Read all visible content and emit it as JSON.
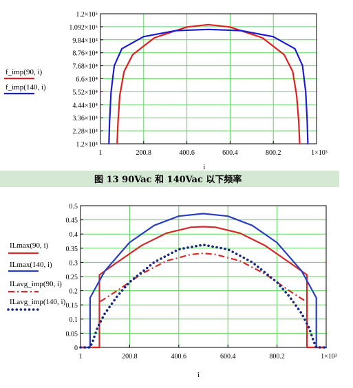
{
  "caption": "图 13 90Vac 和 140Vac 以下频率",
  "chart_data": [
    {
      "type": "line",
      "xlabel": "i",
      "x_ticks": [
        "1",
        "200.8",
        "400.6",
        "600.4",
        "800.2",
        "1×10³"
      ],
      "y_ticks": [
        "1.2×10⁴",
        "2.28×10⁴",
        "3.36×10⁴",
        "4.44×10⁴",
        "5.52×10⁴",
        "6.6×10⁴",
        "7.68×10⁴",
        "8.76×10⁴",
        "9.84×10⁴",
        "1.092×10⁵",
        "1.2×10⁵"
      ],
      "xlim": [
        1,
        1000
      ],
      "ylim": [
        12000,
        120000
      ],
      "grid": true,
      "legend_placement": "left",
      "series": [
        {
          "name": "f_imp(90, i)",
          "color": "#e02020",
          "x": [
            78,
            82,
            90,
            110,
            150,
            250,
            400,
            500,
            600,
            750,
            850,
            890,
            908,
            918,
            922
          ],
          "y": [
            12000,
            30000,
            52000,
            72000,
            86000,
            100000,
            109000,
            111000,
            109000,
            100000,
            86000,
            72000,
            52000,
            30000,
            12000
          ]
        },
        {
          "name": "f_imp(140, i)",
          "color": "#1c1cd0",
          "x": [
            40,
            43,
            50,
            65,
            100,
            200,
            350,
            500,
            650,
            800,
            900,
            935,
            950,
            957,
            960
          ],
          "y": [
            12000,
            30000,
            55000,
            77000,
            91000,
            101000,
            106000,
            107000,
            106000,
            101000,
            91000,
            77000,
            55000,
            30000,
            12000
          ]
        }
      ]
    },
    {
      "type": "line",
      "xlabel": "i",
      "x_ticks": [
        "1",
        "200.8",
        "400.6",
        "600.4",
        "800.2",
        "1×10³"
      ],
      "y_ticks": [
        "0",
        "0.05",
        "0.1",
        "0.15",
        "0.2",
        "0.25",
        "0.3",
        "0.35",
        "0.4",
        "0.45",
        "0.5"
      ],
      "xlim": [
        1,
        1000
      ],
      "ylim": [
        0,
        0.5
      ],
      "grid": true,
      "legend_placement": "left",
      "series": [
        {
          "name": "ILmax(90, i)",
          "style": "solid",
          "color": "#d42a2a",
          "x": [
            1,
            78,
            78,
            150,
            250,
            350,
            450,
            500,
            550,
            650,
            750,
            850,
            922,
            922,
            1000
          ],
          "y": [
            0,
            0,
            0.256,
            0.3,
            0.36,
            0.403,
            0.424,
            0.426,
            0.424,
            0.403,
            0.36,
            0.3,
            0.256,
            0,
            0
          ]
        },
        {
          "name": "ILmax(140, i)",
          "style": "solid",
          "color": "#2a3fc0",
          "x": [
            1,
            40,
            40,
            100,
            200,
            300,
            400,
            500,
            600,
            700,
            800,
            900,
            960,
            960,
            1000
          ],
          "y": [
            0,
            0,
            0.175,
            0.27,
            0.37,
            0.43,
            0.463,
            0.472,
            0.463,
            0.43,
            0.37,
            0.27,
            0.175,
            0,
            0
          ]
        },
        {
          "name": "ILavg_imp(90, i)",
          "style": "dash-dot",
          "color": "#d42a2a",
          "x": [
            1,
            78,
            78,
            150,
            250,
            350,
            450,
            500,
            550,
            650,
            750,
            850,
            922,
            922,
            1000
          ],
          "y": [
            0,
            0,
            0.16,
            0.2,
            0.26,
            0.305,
            0.328,
            0.332,
            0.328,
            0.305,
            0.26,
            0.2,
            0.16,
            0,
            0
          ]
        },
        {
          "name": "ILavg_imp(140, i)",
          "style": "dotted",
          "color": "#1a2a80",
          "x": [
            1,
            40,
            50,
            70,
            100,
            150,
            200,
            300,
            400,
            500,
            600,
            700,
            800,
            850,
            900,
            930,
            950,
            960,
            1000
          ],
          "y": [
            0,
            0,
            0.02,
            0.07,
            0.12,
            0.18,
            0.23,
            0.3,
            0.346,
            0.362,
            0.346,
            0.3,
            0.23,
            0.18,
            0.12,
            0.07,
            0.02,
            0,
            0
          ]
        }
      ]
    }
  ]
}
